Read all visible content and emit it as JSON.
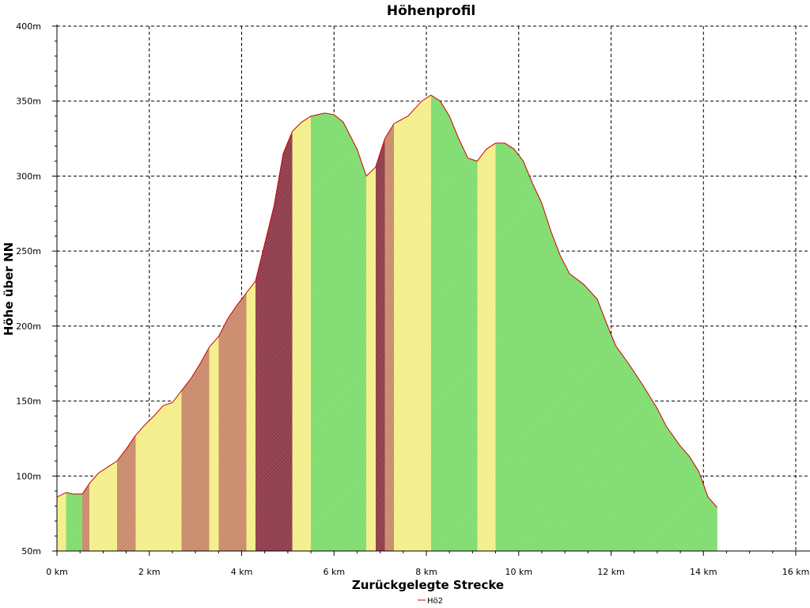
{
  "chart_data": {
    "type": "area",
    "title": "Höhenprofil",
    "xlabel": "Zurückgelegte Strecke",
    "ylabel": "Höhe über NN",
    "xlim": [
      0,
      16
    ],
    "ylim": [
      50,
      400
    ],
    "x_ticks": [
      {
        "value": 0,
        "label": "0 km"
      },
      {
        "value": 2,
        "label": "2 km"
      },
      {
        "value": 4,
        "label": "4 km"
      },
      {
        "value": 6,
        "label": "6 km"
      },
      {
        "value": 8,
        "label": "8 km"
      },
      {
        "value": 10,
        "label": "10 km"
      },
      {
        "value": 12,
        "label": "12 km"
      },
      {
        "value": 14,
        "label": "14 km"
      },
      {
        "value": 16,
        "label": "16 km"
      }
    ],
    "y_ticks": [
      {
        "value": 50,
        "label": "50m"
      },
      {
        "value": 100,
        "label": "100m"
      },
      {
        "value": 150,
        "label": "150m"
      },
      {
        "value": 200,
        "label": "200m"
      },
      {
        "value": 250,
        "label": "250m"
      },
      {
        "value": 300,
        "label": "300m"
      },
      {
        "value": 350,
        "label": "350m"
      },
      {
        "value": 400,
        "label": "400m"
      }
    ],
    "grid": true,
    "legend": {
      "position": "bottom-center",
      "entries": [
        {
          "label": "Hö2",
          "color": "#cc0000"
        }
      ]
    },
    "series": [
      {
        "name": "Hö2",
        "line_color": "#cc0000",
        "x": [
          0,
          0.2,
          0.35,
          0.55,
          0.7,
          0.9,
          1.1,
          1.3,
          1.5,
          1.7,
          1.9,
          2.1,
          2.3,
          2.5,
          2.7,
          2.9,
          3.1,
          3.3,
          3.5,
          3.7,
          3.9,
          4.1,
          4.3,
          4.5,
          4.7,
          4.9,
          5.1,
          5.3,
          5.5,
          5.8,
          6.0,
          6.2,
          6.5,
          6.7,
          6.9,
          7.1,
          7.3,
          7.6,
          7.9,
          8.1,
          8.3,
          8.5,
          8.7,
          8.9,
          9.1,
          9.3,
          9.5,
          9.7,
          9.9,
          10.1,
          10.3,
          10.5,
          10.7,
          10.9,
          11.1,
          11.4,
          11.7,
          11.9,
          12.1,
          12.4,
          12.7,
          13.0,
          13.2,
          13.5,
          13.7,
          13.9,
          14.1,
          14.3
        ],
        "y": [
          86,
          89,
          88,
          88,
          95,
          102,
          106,
          110,
          118,
          127,
          134,
          140,
          147,
          149,
          157,
          165,
          175,
          186,
          193,
          205,
          214,
          222,
          230,
          255,
          280,
          315,
          330,
          336,
          340,
          342,
          341,
          336,
          318,
          300,
          306,
          325,
          335,
          340,
          350,
          354,
          350,
          340,
          325,
          312,
          310,
          318,
          322,
          322,
          318,
          310,
          295,
          282,
          263,
          247,
          235,
          228,
          218,
          202,
          187,
          174,
          160,
          145,
          133,
          120,
          113,
          103,
          86,
          79
        ]
      }
    ],
    "fill_gradient_note": "",
    "fill_colors": {
      "flat": "#7fdc6e",
      "moderate": "#f4ee8a",
      "steep": "#8e3a4a"
    }
  }
}
